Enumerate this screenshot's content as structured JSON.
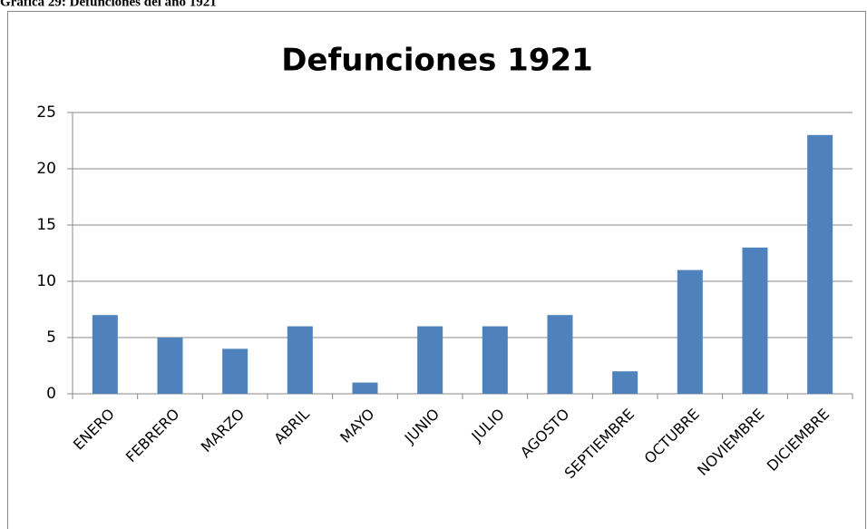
{
  "caption": "Gráfica 29: Defunciones del año 1921",
  "chart_data": {
    "type": "bar",
    "title": "Defunciones 1921",
    "categories": [
      "ENERO",
      "FEBRERO",
      "MARZO",
      "ABRIL",
      "MAYO",
      "JUNIO",
      "JULIO",
      "AGOSTO",
      "SEPTIEMBRE",
      "OCTUBRE",
      "NOVIEMBRE",
      "DICIEMBRE"
    ],
    "values": [
      7,
      5,
      4,
      6,
      1,
      6,
      6,
      7,
      2,
      11,
      13,
      23
    ],
    "color": "#4f81bd",
    "ylim": [
      0,
      25
    ],
    "yticks": [
      0,
      5,
      10,
      15,
      20,
      25
    ],
    "grid": true
  }
}
